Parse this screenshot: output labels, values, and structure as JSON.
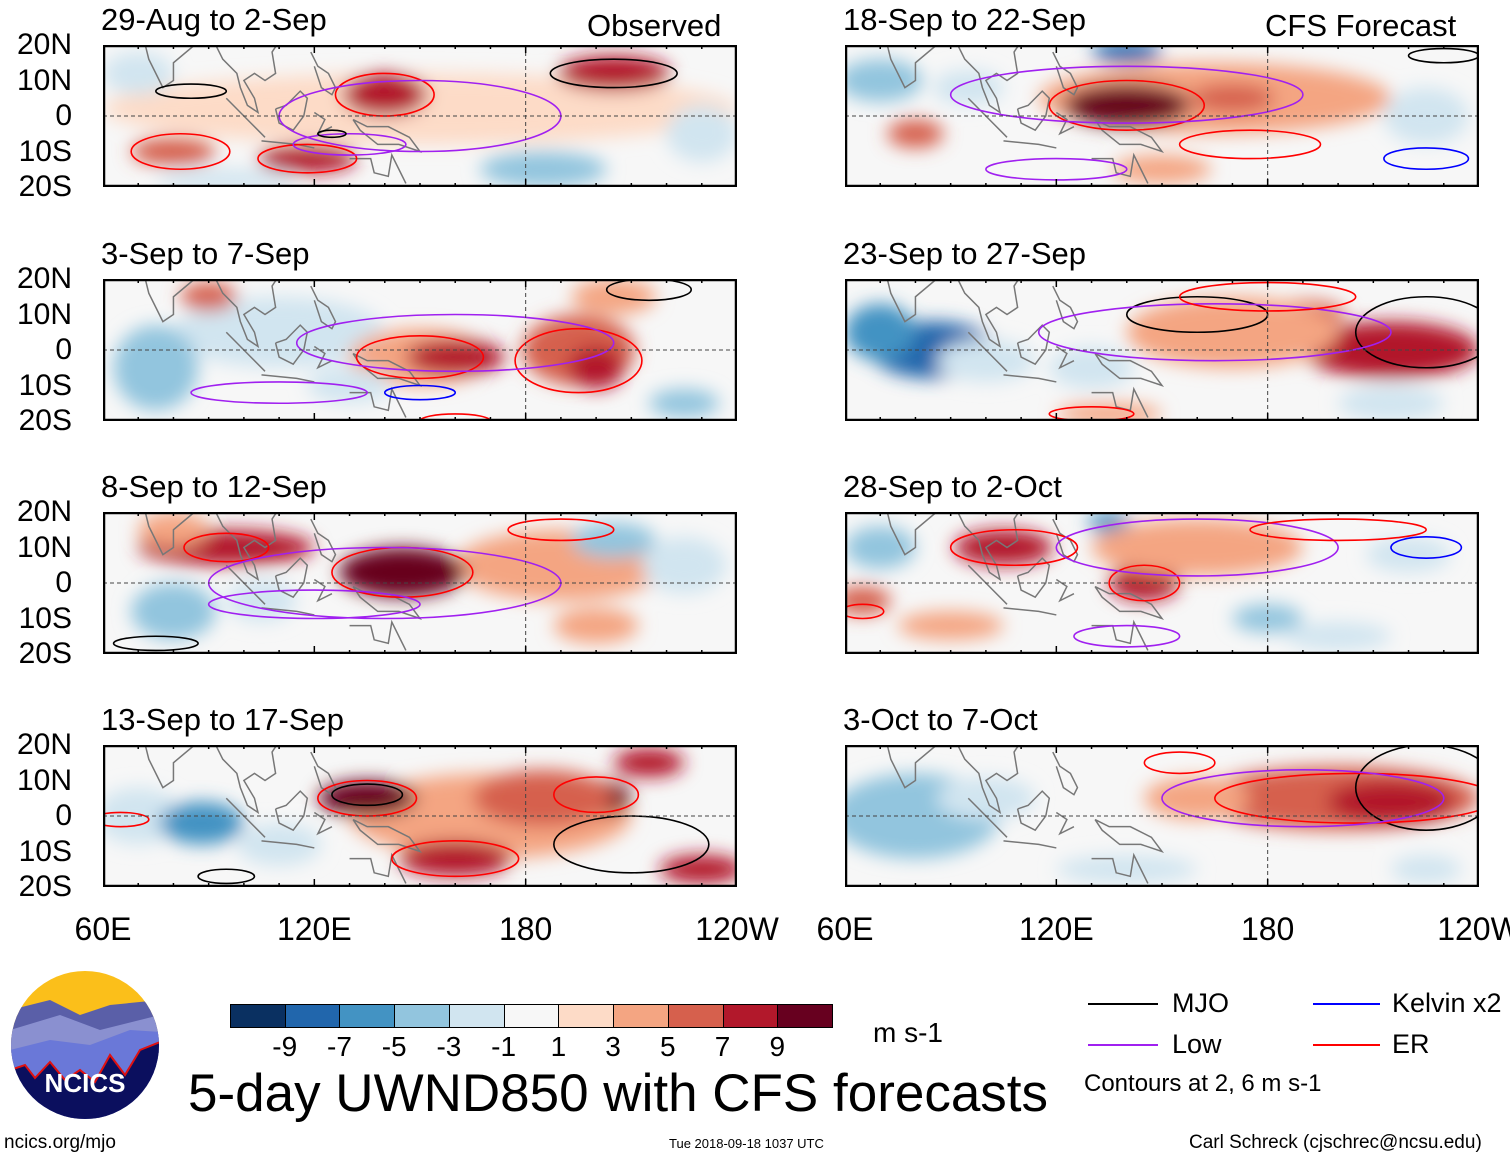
{
  "columns": {
    "left_header": "Observed",
    "right_header": "CFS Forecast"
  },
  "panels": [
    {
      "title": "29-Aug to 2-Sep",
      "column": "left"
    },
    {
      "title": "3-Sep to 7-Sep",
      "column": "left"
    },
    {
      "title": "8-Sep to 12-Sep",
      "column": "left"
    },
    {
      "title": "13-Sep to 17-Sep",
      "column": "left"
    },
    {
      "title": "18-Sep to 22-Sep",
      "column": "right"
    },
    {
      "title": "23-Sep to 27-Sep",
      "column": "right"
    },
    {
      "title": "28-Sep to 2-Oct",
      "column": "right"
    },
    {
      "title": "3-Oct to 7-Oct",
      "column": "right"
    }
  ],
  "lat_labels": [
    "20N",
    "10N",
    "0",
    "10S",
    "20S"
  ],
  "lon_labels": [
    "60E",
    "120E",
    "180",
    "120W"
  ],
  "colorbar": {
    "colors": [
      "#0a3061",
      "#2166ac",
      "#4393c3",
      "#92c5de",
      "#d1e5f0",
      "#f7f7f7",
      "#fddbc7",
      "#f4a582",
      "#d6604d",
      "#b2182b",
      "#67001f"
    ],
    "ticks": [
      "-9",
      "-7",
      "-5",
      "-3",
      "-1",
      "1",
      "3",
      "5",
      "7",
      "9"
    ],
    "units": "m s-1"
  },
  "title": "5-day UWND850 with CFS forecasts",
  "legend": {
    "items": [
      {
        "label": "MJO",
        "color": "#000000"
      },
      {
        "label": "Kelvin x2",
        "color": "#0000ff"
      },
      {
        "label": "Low",
        "color": "#a020f0"
      },
      {
        "label": "ER",
        "color": "#ff0000"
      }
    ],
    "note": "Contours at 2, 6 m s-1"
  },
  "logo": {
    "text": "NCICS"
  },
  "footer": {
    "url": "ncics.org/mjo",
    "timestamp": "Tue 2018-09-18 1037 UTC",
    "credit": "Carl Schreck (cjschrec@ncsu.edu)"
  }
}
